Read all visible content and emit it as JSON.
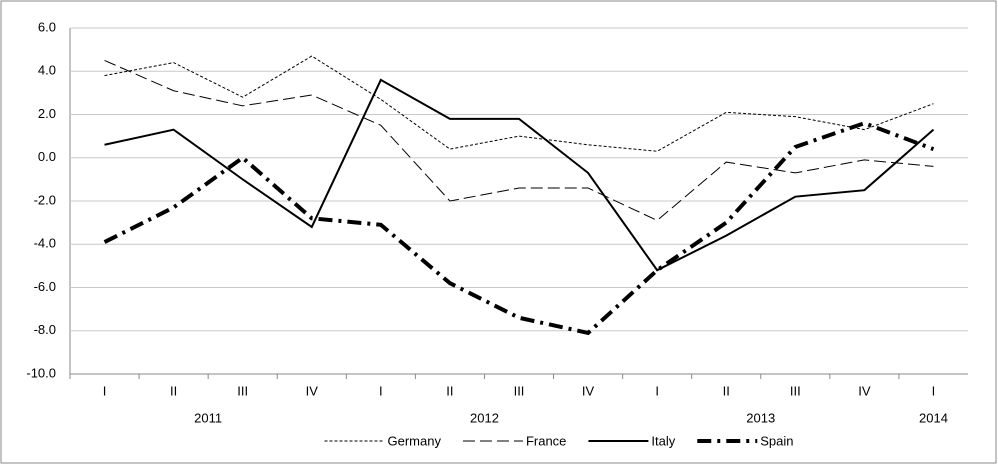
{
  "chart_data": {
    "type": "line",
    "categories": [
      "I",
      "II",
      "III",
      "IV",
      "I",
      "II",
      "III",
      "IV",
      "I",
      "II",
      "III",
      "IV",
      "I"
    ],
    "years": [
      "2011",
      "2011",
      "2011",
      "2011",
      "2012",
      "2012",
      "2012",
      "2012",
      "2013",
      "2013",
      "2013",
      "2013",
      "2014"
    ],
    "series": [
      {
        "name": "Germany",
        "color": "#000000",
        "dash": "3,2",
        "width": 1,
        "values": [
          3.8,
          4.4,
          2.8,
          4.7,
          2.7,
          0.4,
          1.0,
          0.6,
          0.3,
          2.1,
          1.9,
          1.3,
          2.5
        ]
      },
      {
        "name": "France",
        "color": "#000000",
        "dash": "12,5",
        "width": 1,
        "values": [
          4.5,
          3.1,
          2.4,
          2.9,
          1.5,
          -2.0,
          -1.4,
          -1.4,
          -2.9,
          -0.2,
          -0.7,
          -0.1,
          -0.4
        ]
      },
      {
        "name": "Italy",
        "color": "#000000",
        "dash": "none",
        "width": 2,
        "values": [
          0.6,
          1.3,
          -1.0,
          -3.2,
          3.6,
          1.8,
          1.8,
          -0.7,
          -5.2,
          -3.6,
          -1.8,
          -1.5,
          1.3
        ]
      },
      {
        "name": "Spain",
        "color": "#000000",
        "dash": "14,6,3,6",
        "width": 4,
        "values": [
          -3.9,
          -2.3,
          0.0,
          -2.8,
          -3.1,
          -5.8,
          -7.4,
          -8.1,
          -5.2,
          -3.0,
          0.5,
          1.6,
          0.4
        ]
      }
    ],
    "ylim": [
      -10,
      6
    ],
    "yticks": [
      {
        "value": -10,
        "label": "-10.0"
      },
      {
        "value": -8,
        "label": "-8.0"
      },
      {
        "value": -6,
        "label": "-6.0"
      },
      {
        "value": -4,
        "label": "-4.0"
      },
      {
        "value": -2,
        "label": "-2.0"
      },
      {
        "value": 0,
        "label": "0.0"
      },
      {
        "value": 2,
        "label": "2.0"
      },
      {
        "value": 4,
        "label": "4.0"
      },
      {
        "value": 6,
        "label": "6.0"
      }
    ],
    "grid": true,
    "legend": "bottom"
  }
}
